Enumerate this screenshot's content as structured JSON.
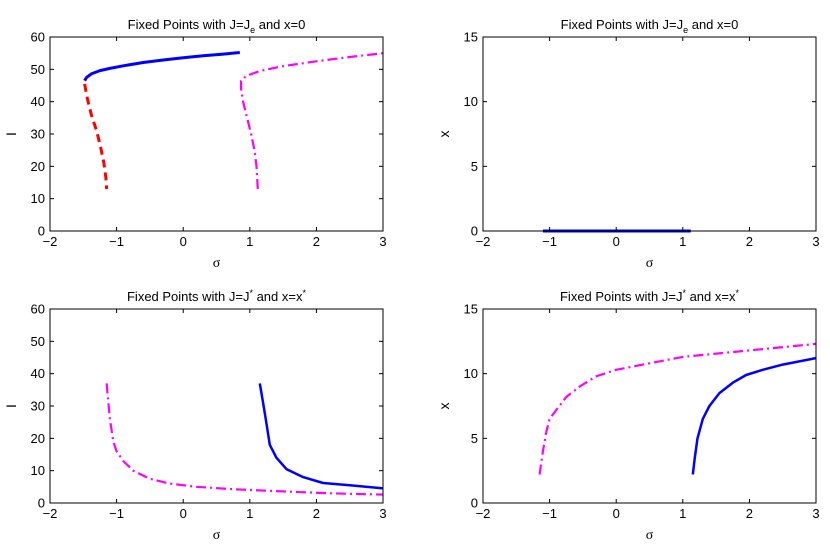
{
  "chart_data": [
    {
      "type": "line",
      "title": "Fixed Points with J=J",
      "title_sub": "e",
      "title_sub_type": "sub",
      "title_tail": " and x=0",
      "xlabel": "σ",
      "ylabel": "I",
      "xlim": [
        -2,
        3
      ],
      "ylim": [
        0,
        60
      ],
      "xticks": [
        -2,
        -1,
        0,
        1,
        2,
        3
      ],
      "yticks": [
        0,
        10,
        20,
        30,
        40,
        50,
        60
      ],
      "xtick_labels": [
        "−2",
        "−1",
        "0",
        "1",
        "2",
        "3"
      ],
      "ytick_labels": [
        "0",
        "10",
        "20",
        "30",
        "40",
        "50",
        "60"
      ],
      "series": [
        {
          "color": "#0000ff",
          "dash": "solid",
          "width": 3,
          "x": [
            -1.48,
            -1.45,
            -1.38,
            -1.25,
            -1.1,
            -0.9,
            -0.6,
            -0.3,
            0.0,
            0.3,
            0.6,
            0.85
          ],
          "y": [
            46.5,
            47.5,
            48.6,
            49.6,
            50.3,
            51.1,
            52.1,
            52.9,
            53.6,
            54.2,
            54.7,
            55.2
          ]
        },
        {
          "color": "#ff0000",
          "dash": "dashed",
          "width": 3,
          "x": [
            -1.48,
            -1.44,
            -1.38,
            -1.3,
            -1.24,
            -1.19,
            -1.16,
            -1.15
          ],
          "y": [
            45.5,
            41.0,
            36.0,
            31.0,
            26.0,
            21.0,
            16.5,
            13.0
          ],
          "y_note": ""
        },
        {
          "color": "#ff00ff",
          "dash": "dashdot",
          "width": 2.2,
          "x": [
            1.12,
            1.1,
            1.07,
            1.02,
            0.96,
            0.9,
            0.87,
            0.87,
            0.95,
            1.15,
            1.5,
            2.0,
            2.5,
            3.0
          ],
          "y": [
            13.0,
            20.0,
            25.0,
            30.0,
            35.0,
            40.0,
            44.0,
            46.5,
            48.0,
            49.5,
            51.0,
            52.5,
            53.8,
            55.0
          ]
        }
      ]
    },
    {
      "type": "line",
      "title": "Fixed Points with J=J",
      "title_sub": "e",
      "title_sub_type": "sub",
      "title_tail": " and x=0",
      "xlabel": "σ",
      "ylabel": "x",
      "xlim": [
        -2,
        3
      ],
      "ylim": [
        0,
        15
      ],
      "xticks": [
        -2,
        -1,
        0,
        1,
        2,
        3
      ],
      "yticks": [
        0,
        5,
        10,
        15
      ],
      "xtick_labels": [
        "−2",
        "−1",
        "0",
        "1",
        "2",
        "3"
      ],
      "ytick_labels": [
        "0",
        "5",
        "10",
        "15"
      ],
      "series": [
        {
          "color": "#000000",
          "dash": "solid",
          "width": 1,
          "x": [
            -2,
            3
          ],
          "y": [
            0,
            0
          ]
        },
        {
          "color": "#0000ff",
          "dash": "solid",
          "width": 3,
          "x": [
            -1.1,
            1.12
          ],
          "y": [
            0,
            0
          ]
        }
      ]
    },
    {
      "type": "line",
      "title": "Fixed Points with J=J",
      "title_sub": "*",
      "title_sub_type": "sup",
      "title_tail": " and x=x",
      "title_tail_sup": "*",
      "xlabel": "σ",
      "ylabel": "I",
      "xlim": [
        -2,
        3
      ],
      "ylim": [
        0,
        60
      ],
      "xticks": [
        -2,
        -1,
        0,
        1,
        2,
        3
      ],
      "yticks": [
        0,
        10,
        20,
        30,
        40,
        50,
        60
      ],
      "xtick_labels": [
        "−2",
        "−1",
        "0",
        "1",
        "2",
        "3"
      ],
      "ytick_labels": [
        "0",
        "10",
        "20",
        "30",
        "40",
        "50",
        "60"
      ],
      "series": [
        {
          "color": "#0000ff",
          "dash": "solid",
          "width": 2.5,
          "x": [
            1.15,
            1.2,
            1.25,
            1.3,
            1.4,
            1.55,
            1.8,
            2.1,
            2.5,
            3.0
          ],
          "y": [
            37.0,
            31.0,
            24.5,
            18.0,
            14.0,
            10.5,
            8.0,
            6.2,
            5.5,
            4.5
          ]
        },
        {
          "color": "#ff00ff",
          "dash": "dashdot",
          "width": 2.2,
          "x": [
            -1.15,
            -1.1,
            -1.05,
            -1.0,
            -0.9,
            -0.75,
            -0.5,
            -0.2,
            0.2,
            0.8,
            1.5,
            2.2,
            3.0
          ],
          "y": [
            37.0,
            26.0,
            19.0,
            16.0,
            13.0,
            10.0,
            7.5,
            6.0,
            5.0,
            4.2,
            3.6,
            3.0,
            2.6
          ]
        }
      ]
    },
    {
      "type": "line",
      "title": "Fixed Points with J=J",
      "title_sub": "*",
      "title_sub_type": "sup",
      "title_tail": " and x=x",
      "title_tail_sup": "*",
      "xlabel": "σ",
      "ylabel": "x",
      "xlim": [
        -2,
        3
      ],
      "ylim": [
        0,
        15
      ],
      "xticks": [
        -2,
        -1,
        0,
        1,
        2,
        3
      ],
      "yticks": [
        0,
        5,
        10,
        15
      ],
      "xtick_labels": [
        "−2",
        "−1",
        "0",
        "1",
        "2",
        "3"
      ],
      "ytick_labels": [
        "0",
        "5",
        "10",
        "15"
      ],
      "series": [
        {
          "color": "#0000ff",
          "dash": "solid",
          "width": 2.5,
          "x": [
            1.15,
            1.18,
            1.22,
            1.3,
            1.4,
            1.55,
            1.75,
            1.95,
            2.2,
            2.5,
            3.0
          ],
          "y": [
            2.2,
            3.5,
            5.0,
            6.5,
            7.5,
            8.5,
            9.3,
            9.9,
            10.3,
            10.7,
            11.2
          ]
        },
        {
          "color": "#ff00ff",
          "dash": "dashdot",
          "width": 2.2,
          "x": [
            -1.15,
            -1.1,
            -1.05,
            -1.0,
            -0.9,
            -0.75,
            -0.55,
            -0.3,
            0.0,
            0.5,
            1.0,
            1.6,
            2.2,
            3.0
          ],
          "y": [
            2.2,
            4.0,
            5.5,
            6.5,
            7.2,
            8.2,
            9.0,
            9.8,
            10.3,
            10.8,
            11.3,
            11.6,
            11.9,
            12.3
          ]
        }
      ]
    }
  ]
}
